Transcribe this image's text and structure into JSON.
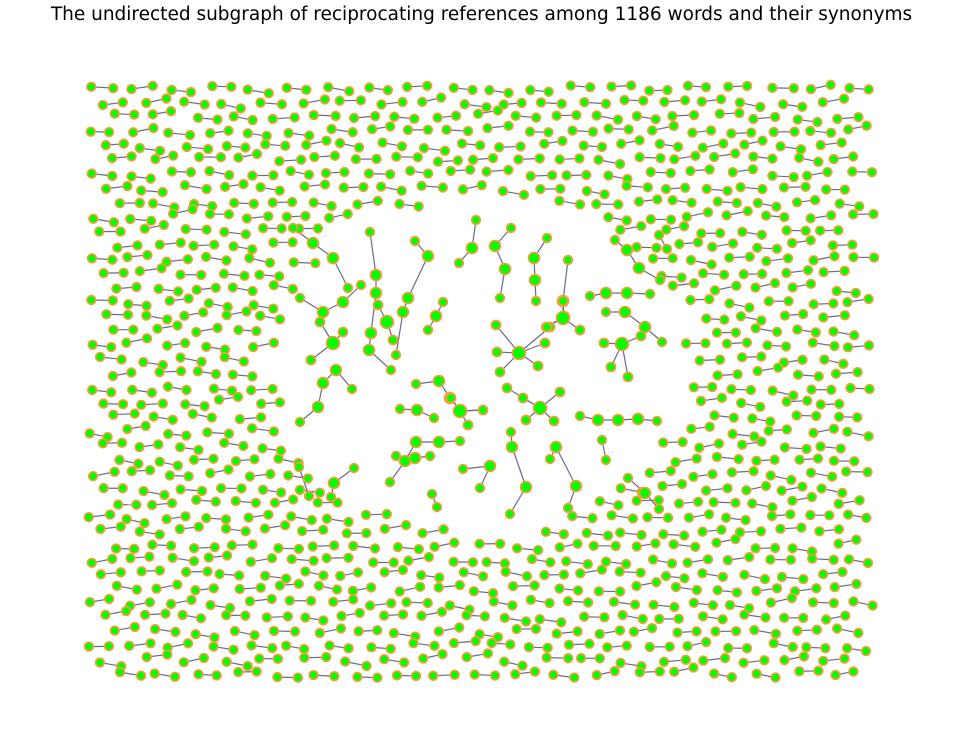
{
  "title": "The undirected subgraph of reciprocating references among 1186 words and their synonyms",
  "graph": {
    "layout": "force-directed network, mostly isolated two-word pairs with a few small clusters",
    "node_fill": "#00ff00",
    "node_outline": "#ff9a3c",
    "edge_color": "#6b6b8c",
    "axes": "off"
  }
}
